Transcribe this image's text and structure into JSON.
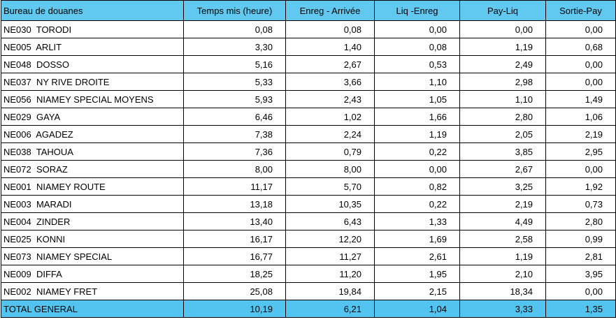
{
  "table": {
    "header": [
      "Bureau de douanes",
      "Temps mis (heure)",
      "Enreg - Arrivée",
      "Liq -Enreg",
      "Pay-Liq",
      "Sortie-Pay"
    ],
    "rows": [
      [
        "NE030  TORODI",
        "0,08",
        "0,08",
        "0,00",
        "0,00",
        "0,00"
      ],
      [
        "NE005  ARLIT",
        "3,30",
        "1,40",
        "0,08",
        "1,19",
        "0,68"
      ],
      [
        "NE048  DOSSO",
        "5,16",
        "2,67",
        "0,53",
        "2,49",
        "0,00"
      ],
      [
        "NE037  NY RIVE DROITE",
        "5,33",
        "3,66",
        "1,10",
        "2,98",
        "0,00"
      ],
      [
        "NE056  NIAMEY SPECIAL MOYENS",
        "5,93",
        "2,43",
        "1,05",
        "1,10",
        "1,49"
      ],
      [
        "NE029  GAYA",
        "6,46",
        "1,02",
        "1,66",
        "2,80",
        "1,06"
      ],
      [
        "NE006  AGADEZ",
        "7,38",
        "2,24",
        "1,19",
        "2,05",
        "2,19"
      ],
      [
        "NE038  TAHOUA",
        "7,36",
        "0,79",
        "0,22",
        "3,85",
        "2,95"
      ],
      [
        "NE072  SORAZ",
        "8,00",
        "8,00",
        "0,00",
        "2,67",
        "0,00"
      ],
      [
        "NE001  NIAMEY ROUTE",
        "11,17",
        "5,70",
        "0,82",
        "3,25",
        "1,92"
      ],
      [
        "NE003  MARADI",
        "13,18",
        "10,35",
        "0,22",
        "2,19",
        "0,73"
      ],
      [
        "NE004  ZINDER",
        "13,40",
        "6,43",
        "1,33",
        "4,49",
        "2,80"
      ],
      [
        "NE025  KONNI",
        "16,17",
        "12,20",
        "1,69",
        "2,58",
        "0,99"
      ],
      [
        "NE073  NIAMEY SPECIAL",
        "16,77",
        "11,27",
        "2,61",
        "1,19",
        "2,81"
      ],
      [
        "NE009  DIFFA",
        "18,25",
        "11,20",
        "1,95",
        "2,10",
        "3,95"
      ],
      [
        "NE002  NIAMEY FRET",
        "25,08",
        "19,84",
        "2,15",
        "18,34",
        "0,00"
      ]
    ],
    "total": [
      "TOTAL GENERAL",
      "10,19",
      "6,21",
      "1,04",
      "3,33",
      "1,35"
    ]
  }
}
